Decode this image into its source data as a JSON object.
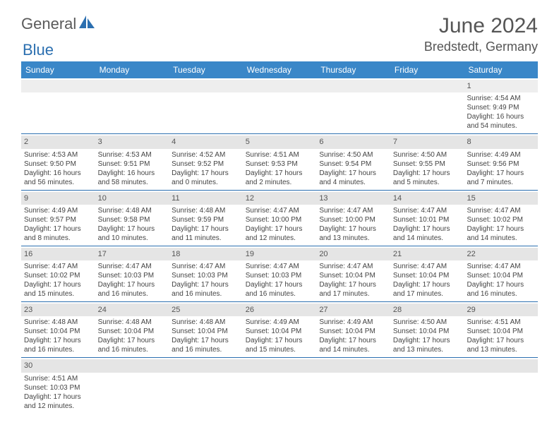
{
  "logo": {
    "general": "General",
    "blue": "Blue"
  },
  "header": {
    "month": "June 2024",
    "location": "Bredstedt, Germany"
  },
  "weekdays": [
    "Sunday",
    "Monday",
    "Tuesday",
    "Wednesday",
    "Thursday",
    "Friday",
    "Saturday"
  ],
  "colors": {
    "header_bg": "#3a87c8",
    "header_text": "#ffffff",
    "daynum_bg": "#e5e5e5",
    "border": "#2b6fb0",
    "text": "#444444",
    "title": "#555555",
    "logo_blue": "#2b6fb0"
  },
  "weeks": [
    [
      {
        "n": "",
        "lines": []
      },
      {
        "n": "",
        "lines": []
      },
      {
        "n": "",
        "lines": []
      },
      {
        "n": "",
        "lines": []
      },
      {
        "n": "",
        "lines": []
      },
      {
        "n": "",
        "lines": []
      },
      {
        "n": "1",
        "lines": [
          "Sunrise: 4:54 AM",
          "Sunset: 9:49 PM",
          "Daylight: 16 hours",
          "and 54 minutes."
        ]
      }
    ],
    [
      {
        "n": "2",
        "lines": [
          "Sunrise: 4:53 AM",
          "Sunset: 9:50 PM",
          "Daylight: 16 hours",
          "and 56 minutes."
        ]
      },
      {
        "n": "3",
        "lines": [
          "Sunrise: 4:53 AM",
          "Sunset: 9:51 PM",
          "Daylight: 16 hours",
          "and 58 minutes."
        ]
      },
      {
        "n": "4",
        "lines": [
          "Sunrise: 4:52 AM",
          "Sunset: 9:52 PM",
          "Daylight: 17 hours",
          "and 0 minutes."
        ]
      },
      {
        "n": "5",
        "lines": [
          "Sunrise: 4:51 AM",
          "Sunset: 9:53 PM",
          "Daylight: 17 hours",
          "and 2 minutes."
        ]
      },
      {
        "n": "6",
        "lines": [
          "Sunrise: 4:50 AM",
          "Sunset: 9:54 PM",
          "Daylight: 17 hours",
          "and 4 minutes."
        ]
      },
      {
        "n": "7",
        "lines": [
          "Sunrise: 4:50 AM",
          "Sunset: 9:55 PM",
          "Daylight: 17 hours",
          "and 5 minutes."
        ]
      },
      {
        "n": "8",
        "lines": [
          "Sunrise: 4:49 AM",
          "Sunset: 9:56 PM",
          "Daylight: 17 hours",
          "and 7 minutes."
        ]
      }
    ],
    [
      {
        "n": "9",
        "lines": [
          "Sunrise: 4:49 AM",
          "Sunset: 9:57 PM",
          "Daylight: 17 hours",
          "and 8 minutes."
        ]
      },
      {
        "n": "10",
        "lines": [
          "Sunrise: 4:48 AM",
          "Sunset: 9:58 PM",
          "Daylight: 17 hours",
          "and 10 minutes."
        ]
      },
      {
        "n": "11",
        "lines": [
          "Sunrise: 4:48 AM",
          "Sunset: 9:59 PM",
          "Daylight: 17 hours",
          "and 11 minutes."
        ]
      },
      {
        "n": "12",
        "lines": [
          "Sunrise: 4:47 AM",
          "Sunset: 10:00 PM",
          "Daylight: 17 hours",
          "and 12 minutes."
        ]
      },
      {
        "n": "13",
        "lines": [
          "Sunrise: 4:47 AM",
          "Sunset: 10:00 PM",
          "Daylight: 17 hours",
          "and 13 minutes."
        ]
      },
      {
        "n": "14",
        "lines": [
          "Sunrise: 4:47 AM",
          "Sunset: 10:01 PM",
          "Daylight: 17 hours",
          "and 14 minutes."
        ]
      },
      {
        "n": "15",
        "lines": [
          "Sunrise: 4:47 AM",
          "Sunset: 10:02 PM",
          "Daylight: 17 hours",
          "and 14 minutes."
        ]
      }
    ],
    [
      {
        "n": "16",
        "lines": [
          "Sunrise: 4:47 AM",
          "Sunset: 10:02 PM",
          "Daylight: 17 hours",
          "and 15 minutes."
        ]
      },
      {
        "n": "17",
        "lines": [
          "Sunrise: 4:47 AM",
          "Sunset: 10:03 PM",
          "Daylight: 17 hours",
          "and 16 minutes."
        ]
      },
      {
        "n": "18",
        "lines": [
          "Sunrise: 4:47 AM",
          "Sunset: 10:03 PM",
          "Daylight: 17 hours",
          "and 16 minutes."
        ]
      },
      {
        "n": "19",
        "lines": [
          "Sunrise: 4:47 AM",
          "Sunset: 10:03 PM",
          "Daylight: 17 hours",
          "and 16 minutes."
        ]
      },
      {
        "n": "20",
        "lines": [
          "Sunrise: 4:47 AM",
          "Sunset: 10:04 PM",
          "Daylight: 17 hours",
          "and 17 minutes."
        ]
      },
      {
        "n": "21",
        "lines": [
          "Sunrise: 4:47 AM",
          "Sunset: 10:04 PM",
          "Daylight: 17 hours",
          "and 17 minutes."
        ]
      },
      {
        "n": "22",
        "lines": [
          "Sunrise: 4:47 AM",
          "Sunset: 10:04 PM",
          "Daylight: 17 hours",
          "and 16 minutes."
        ]
      }
    ],
    [
      {
        "n": "23",
        "lines": [
          "Sunrise: 4:48 AM",
          "Sunset: 10:04 PM",
          "Daylight: 17 hours",
          "and 16 minutes."
        ]
      },
      {
        "n": "24",
        "lines": [
          "Sunrise: 4:48 AM",
          "Sunset: 10:04 PM",
          "Daylight: 17 hours",
          "and 16 minutes."
        ]
      },
      {
        "n": "25",
        "lines": [
          "Sunrise: 4:48 AM",
          "Sunset: 10:04 PM",
          "Daylight: 17 hours",
          "and 16 minutes."
        ]
      },
      {
        "n": "26",
        "lines": [
          "Sunrise: 4:49 AM",
          "Sunset: 10:04 PM",
          "Daylight: 17 hours",
          "and 15 minutes."
        ]
      },
      {
        "n": "27",
        "lines": [
          "Sunrise: 4:49 AM",
          "Sunset: 10:04 PM",
          "Daylight: 17 hours",
          "and 14 minutes."
        ]
      },
      {
        "n": "28",
        "lines": [
          "Sunrise: 4:50 AM",
          "Sunset: 10:04 PM",
          "Daylight: 17 hours",
          "and 13 minutes."
        ]
      },
      {
        "n": "29",
        "lines": [
          "Sunrise: 4:51 AM",
          "Sunset: 10:04 PM",
          "Daylight: 17 hours",
          "and 13 minutes."
        ]
      }
    ],
    [
      {
        "n": "30",
        "lines": [
          "Sunrise: 4:51 AM",
          "Sunset: 10:03 PM",
          "Daylight: 17 hours",
          "and 12 minutes."
        ]
      },
      {
        "n": "",
        "lines": []
      },
      {
        "n": "",
        "lines": []
      },
      {
        "n": "",
        "lines": []
      },
      {
        "n": "",
        "lines": []
      },
      {
        "n": "",
        "lines": []
      },
      {
        "n": "",
        "lines": []
      }
    ]
  ]
}
